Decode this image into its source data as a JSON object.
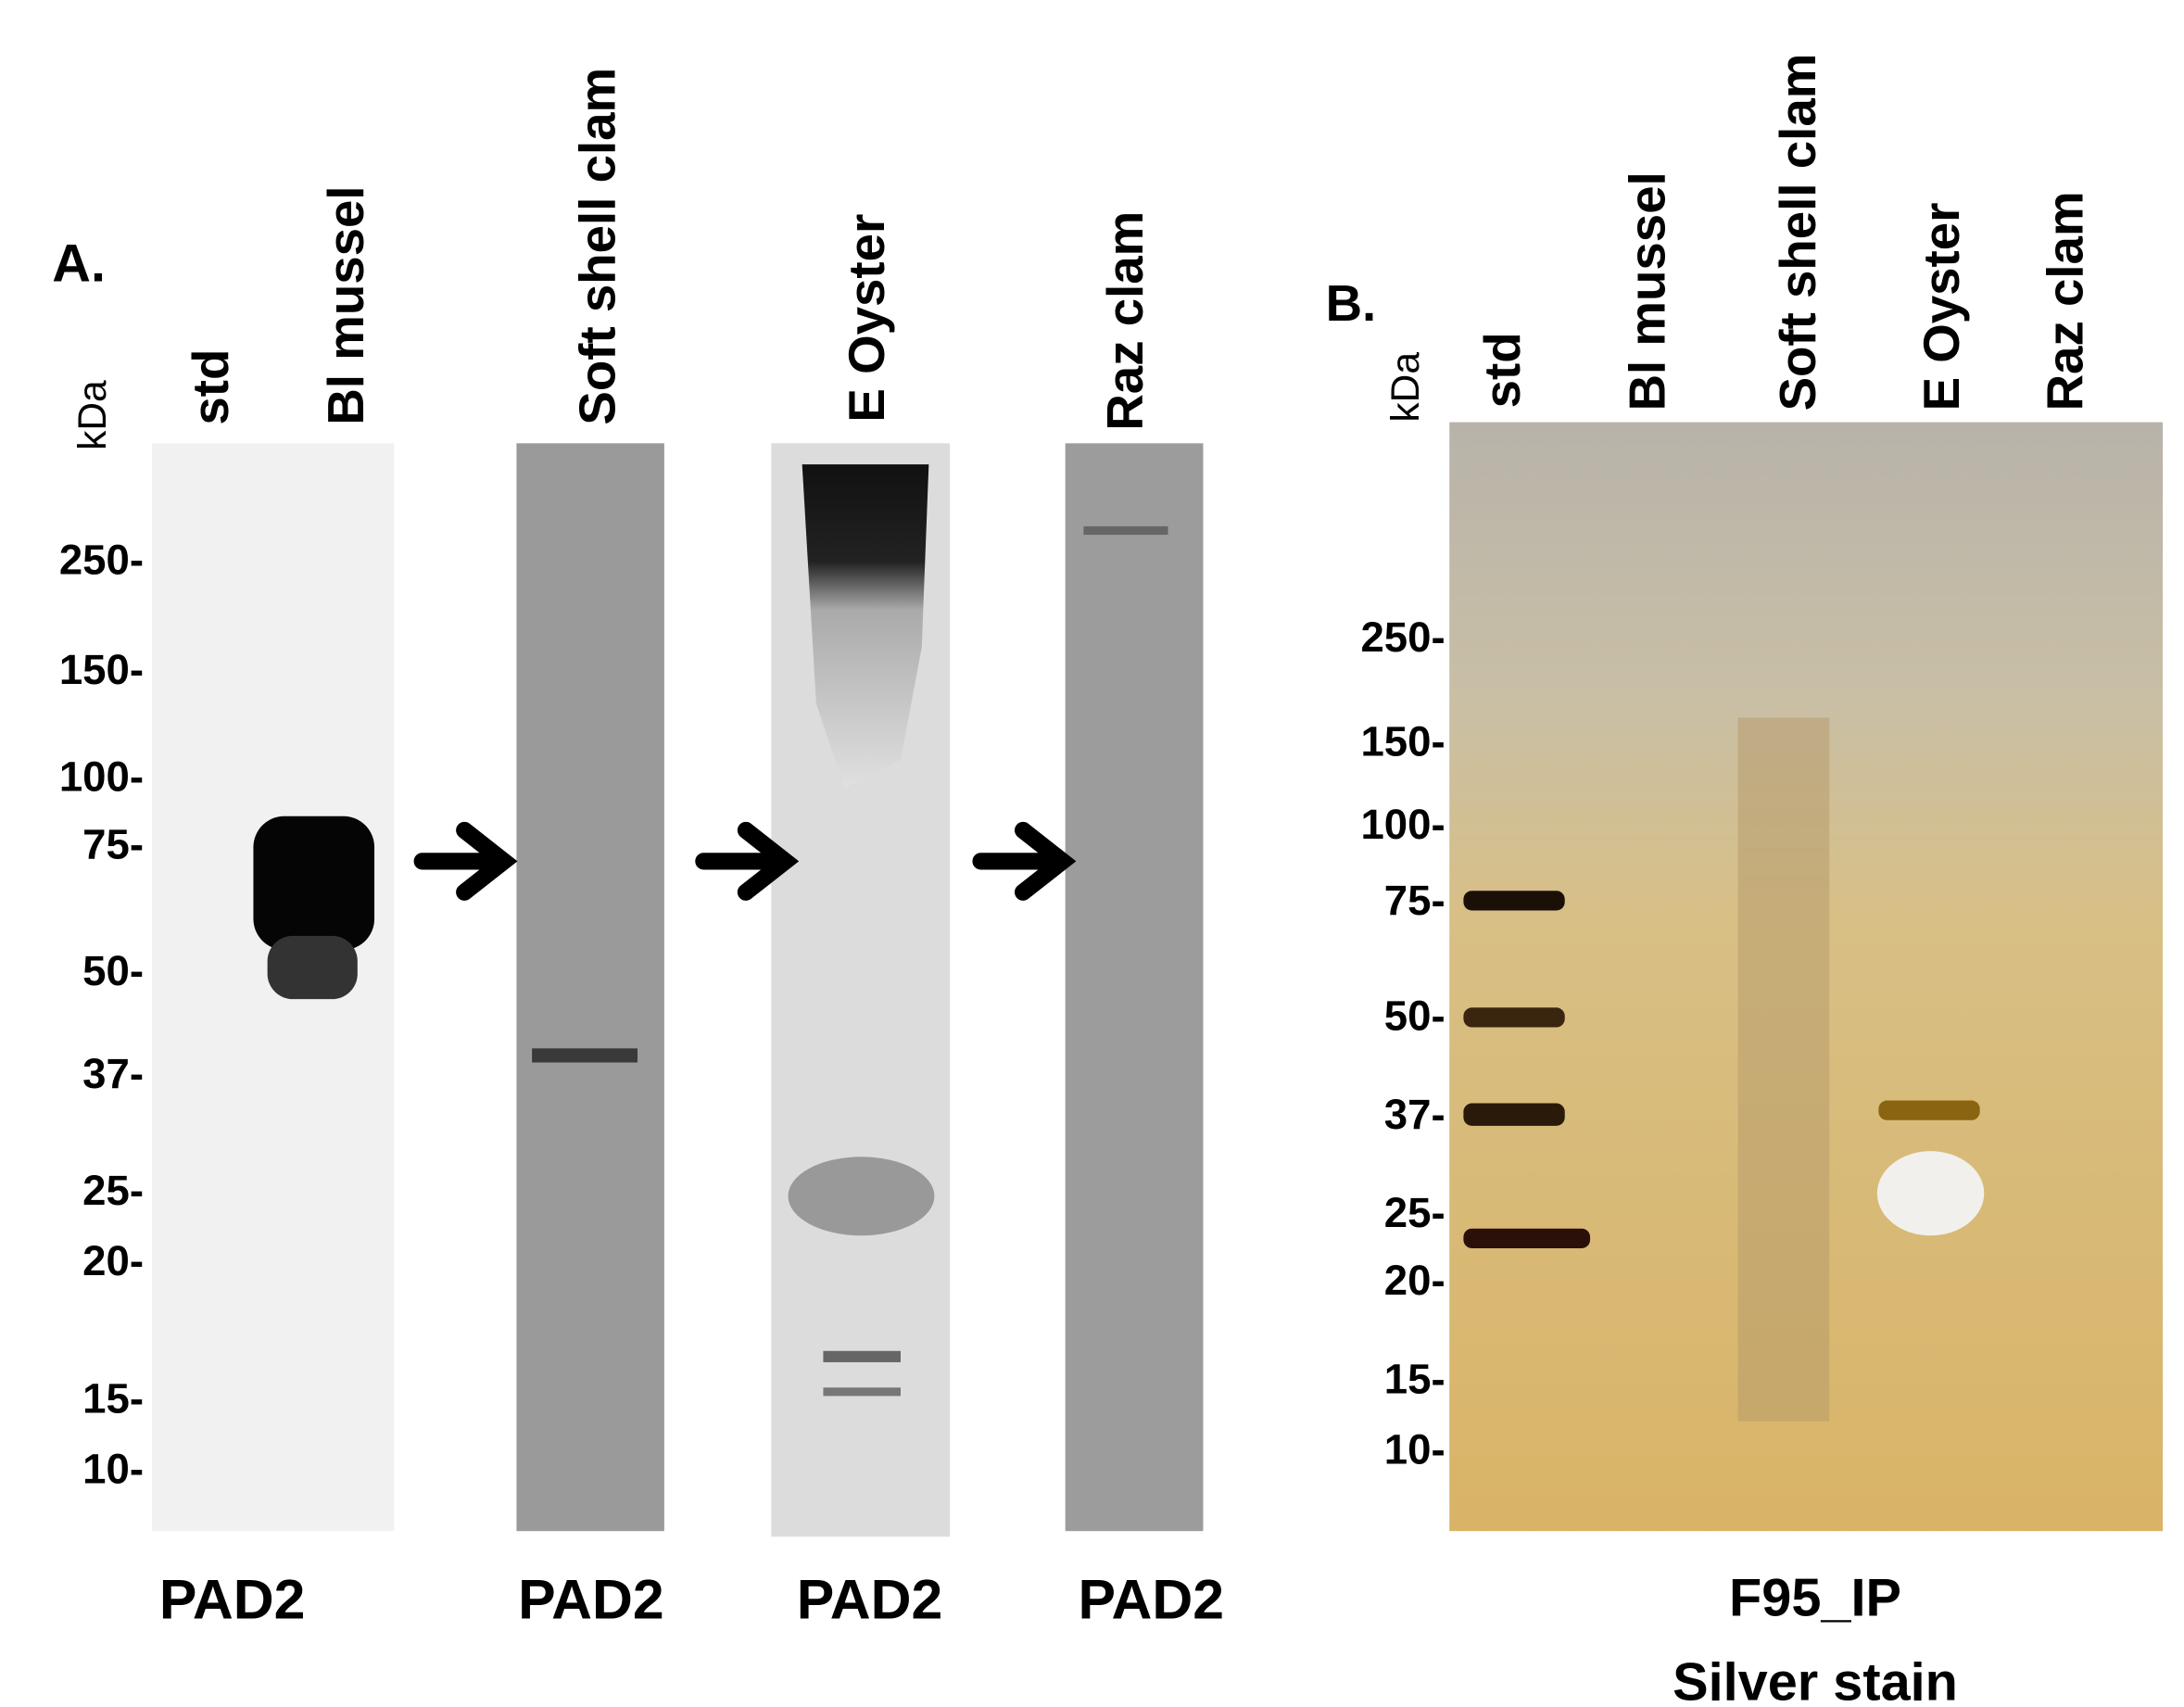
{
  "panel_a": {
    "label": "A.",
    "unit": "kDa",
    "lanes": [
      "std",
      "Bl mussel",
      "Soft shell clam",
      "E Oyster",
      "Raz clam"
    ],
    "markers": [
      "250-",
      "150-",
      "100-",
      "75-",
      "50-",
      "37-",
      "25-",
      "20-",
      "15-",
      "10-"
    ],
    "captions": [
      "PAD2",
      "PAD2",
      "PAD2",
      "PAD2"
    ]
  },
  "panel_b": {
    "label": "B.",
    "unit": "kDa",
    "lanes": [
      "std",
      "Bl mussel",
      "Soft shell clam",
      "E Oyster",
      "Raz clam"
    ],
    "markers": [
      "250-",
      "150-",
      "100-",
      "75-",
      "50-",
      "37-",
      "25-",
      "20-",
      "15-",
      "10-"
    ],
    "captions": [
      "F95_IP",
      "Silver stain"
    ]
  }
}
